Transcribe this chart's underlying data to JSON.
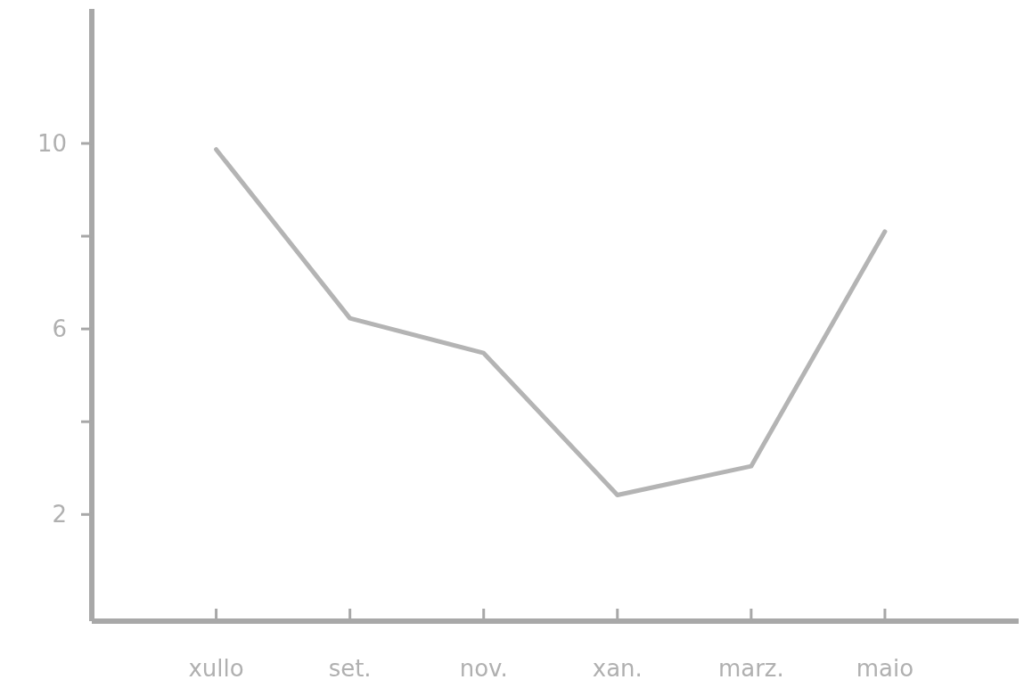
{
  "chart_data": {
    "type": "line",
    "categories": [
      "xullo",
      "set.",
      "nov.",
      "xan.",
      "marz.",
      "maio"
    ],
    "series": [
      {
        "color": "#b4b4b4",
        "values": [
          9.87,
          6.23,
          5.48,
          2.42,
          3.04,
          8.1
        ]
      }
    ],
    "ylim": [
      -0.3,
      12.9
    ],
    "yticks": [
      2,
      {
        "value": 4,
        "label": null
      },
      6,
      {
        "value": 8,
        "label": null
      },
      10
    ],
    "marker": "none",
    "line_style": "solid"
  }
}
